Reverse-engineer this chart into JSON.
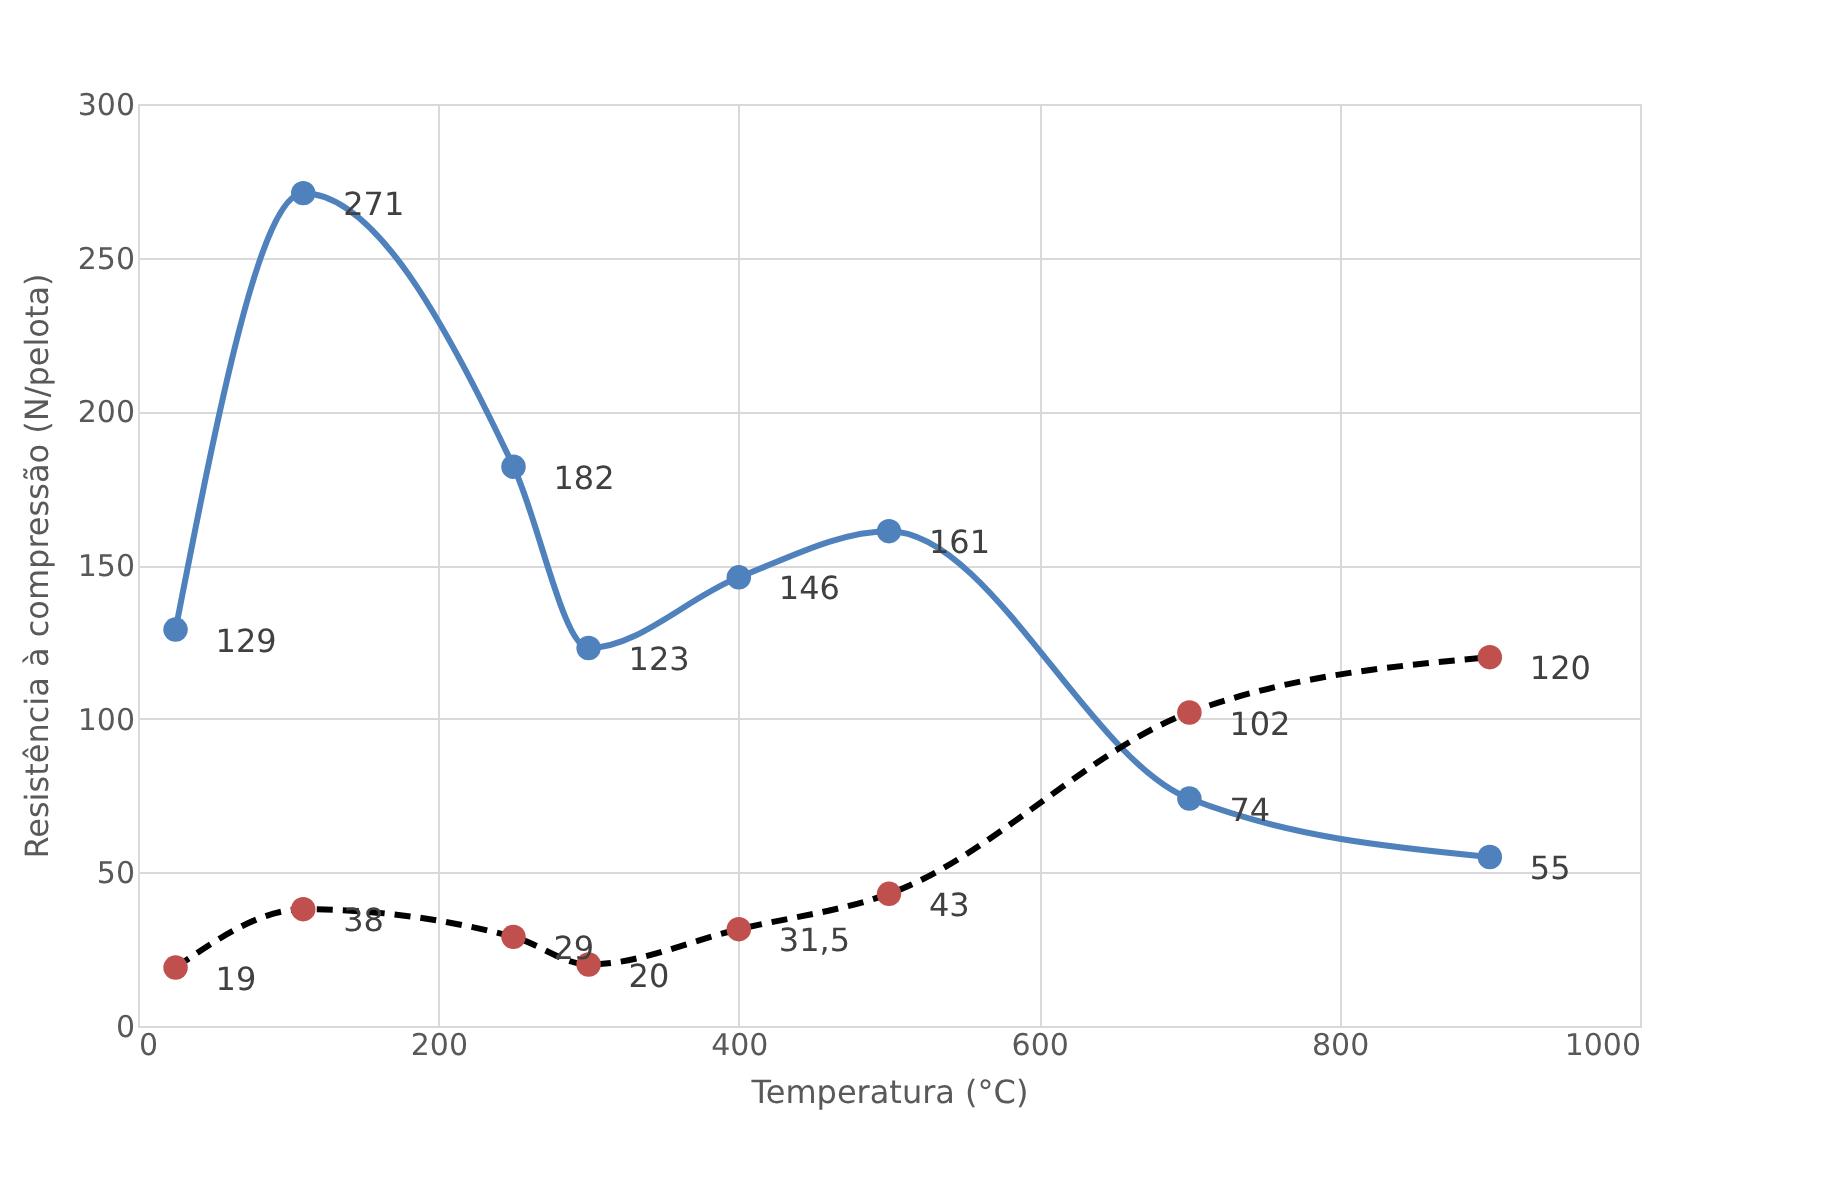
{
  "chart_data": {
    "type": "line",
    "xlabel": "Temperatura (°C)",
    "ylabel": "Resistência à compressão (N/pelota)",
    "xlim": [
      0,
      1000
    ],
    "xticks": [
      0,
      200,
      400,
      600,
      800,
      1000
    ],
    "ylim": [
      0,
      300
    ],
    "yticks": [
      0,
      50,
      100,
      150,
      200,
      250,
      300
    ],
    "grid": true,
    "marker": "circle",
    "series": [
      {
        "color": "#4f81bd",
        "line_style": "solid",
        "x": [
          25,
          110,
          250,
          300,
          400,
          500,
          700,
          900
        ],
        "values": [
          129,
          271,
          182,
          123,
          146,
          161,
          74,
          55
        ],
        "value_labels": [
          "129",
          "271",
          "182",
          "123",
          "146",
          "161",
          "74",
          "55"
        ]
      },
      {
        "color": "#000000",
        "colors": [
          "#c0504d",
          "#c0504d",
          "#c0504d",
          "#c0504d",
          "#c0504d",
          "#c0504d",
          "#c0504d",
          "#c0504d"
        ],
        "line_style": "dashed",
        "x": [
          25,
          110,
          250,
          300,
          400,
          500,
          700,
          900
        ],
        "values": [
          19,
          38,
          29,
          20,
          31.5,
          43,
          102,
          120
        ],
        "value_labels": [
          "19",
          "38",
          "29",
          "20",
          "31,5",
          "43",
          "102",
          "120"
        ]
      }
    ]
  }
}
